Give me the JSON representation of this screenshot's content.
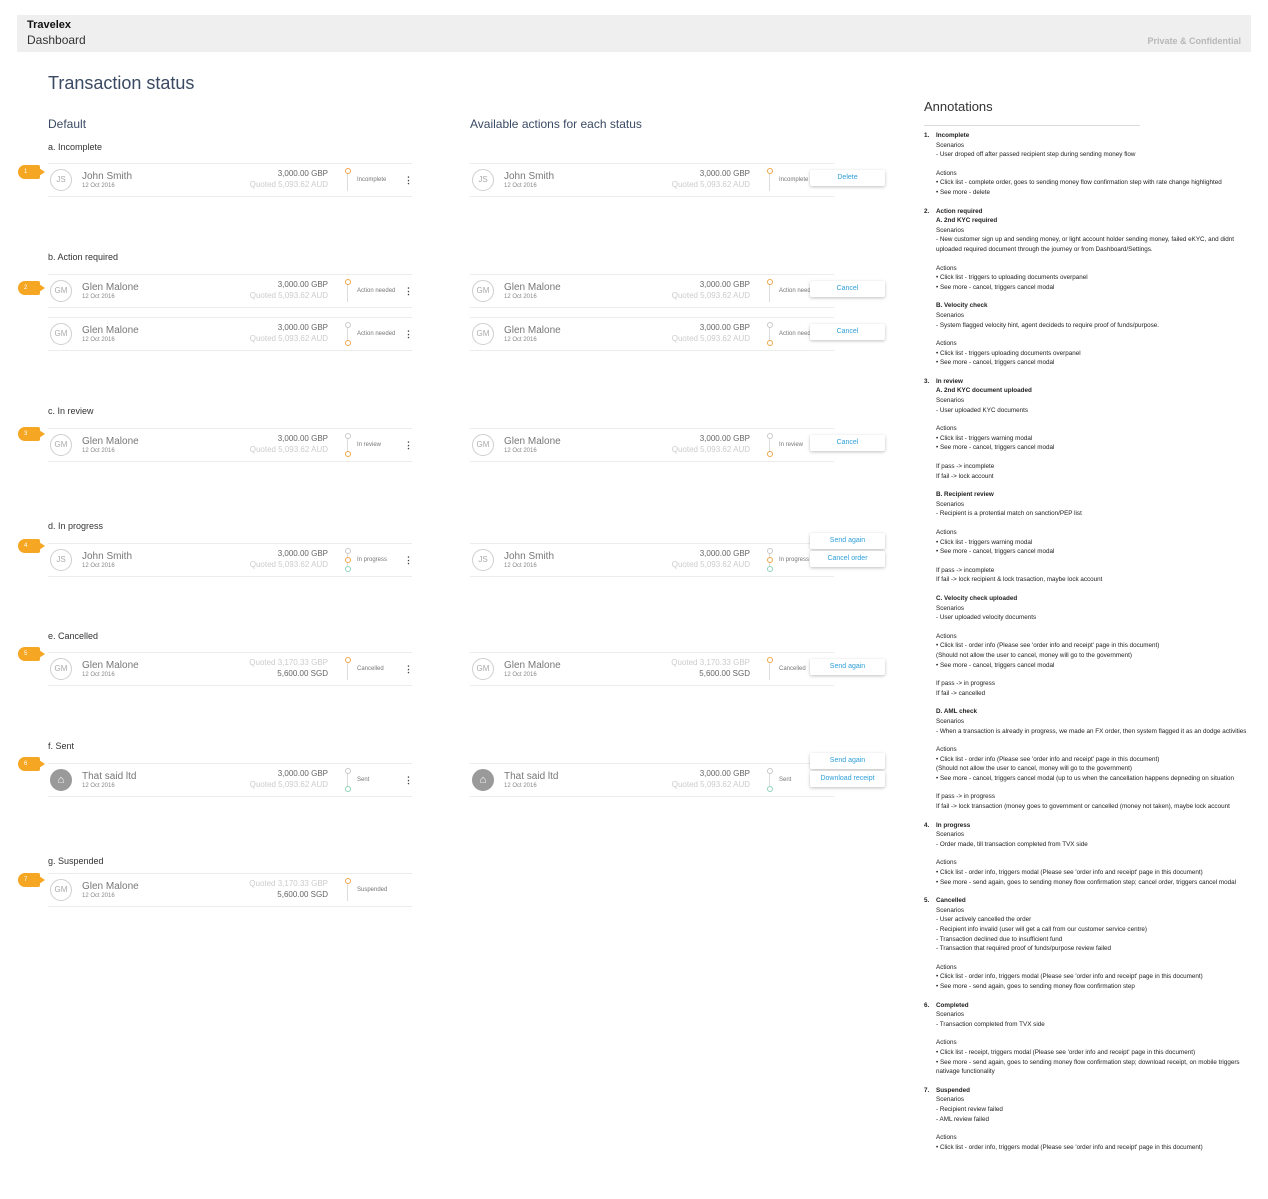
{
  "header": {
    "brand": "Travelex",
    "subtitle": "Dashboard",
    "confidential": "Private & Confidential"
  },
  "page_title": "Transaction status",
  "columns": {
    "default": "Default",
    "actions": "Available actions for each status"
  },
  "sections": [
    {
      "label": "a. Incomplete",
      "badge": "1"
    },
    {
      "label": "b. Action required",
      "badge": "2"
    },
    {
      "label": "c. In review",
      "badge": "3"
    },
    {
      "label": "d. In progress",
      "badge": "4"
    },
    {
      "label": "e. Cancelled",
      "badge": "5"
    },
    {
      "label": "f. Sent",
      "badge": "6"
    },
    {
      "label": "g. Suspended",
      "badge": "7"
    }
  ],
  "rows": [
    {
      "initials": "JS",
      "name": "John Smith",
      "date": "12 Oct 2016",
      "amount": "3,000.00 GBP",
      "quoted": "Quoted 5,093.62 AUD",
      "status": "Incomplete",
      "dots": [
        "orange"
      ],
      "actions": [
        "Delete"
      ]
    },
    {
      "initials": "GM",
      "name": "Glen Malone",
      "date": "12 Oct 2016",
      "amount": "3,000.00 GBP",
      "quoted": "Quoted 5,093.62 AUD",
      "status": "Action needed",
      "dots": [
        "orange"
      ],
      "actions": [
        "Cancel"
      ]
    },
    {
      "initials": "GM",
      "name": "Glen Malone",
      "date": "12 Oct 2016",
      "amount": "3,000.00 GBP",
      "quoted": "Quoted 5,093.62 AUD",
      "status": "Action needed",
      "dots": [
        "grey",
        "orange"
      ],
      "actions": [
        "Cancel"
      ]
    },
    {
      "initials": "GM",
      "name": "Glen Malone",
      "date": "12 Oct 2016",
      "amount": "3,000.00 GBP",
      "quoted": "Quoted 5,093.62 AUD",
      "status": "In review",
      "dots": [
        "grey",
        "orange"
      ],
      "actions": [
        "Cancel"
      ]
    },
    {
      "initials": "JS",
      "name": "John Smith",
      "date": "12 Oct 2016",
      "amount": "3,000.00 GBP",
      "quoted": "Quoted 5,093.62 AUD",
      "status": "In progress",
      "dots": [
        "grey",
        "orange",
        "green"
      ],
      "actions": [
        "Send again",
        "Cancel order"
      ]
    },
    {
      "initials": "GM",
      "name": "Glen Malone",
      "date": "12 Oct 2016",
      "amount": "Quoted 3,170.33 GBP",
      "quoted": "5,600.00 SGD",
      "status": "Cancelled",
      "dots": [
        "orange"
      ],
      "actions": [
        "Send again"
      ]
    },
    {
      "initials": "home",
      "name": "That said ltd",
      "date": "12 Oct 2016",
      "amount": "3,000.00 GBP",
      "quoted": "Quoted 5,093.62 AUD",
      "status": "Sent",
      "dots": [
        "grey",
        "green"
      ],
      "actions": [
        "Send again",
        "Download receipt"
      ]
    },
    {
      "initials": "GM",
      "name": "Glen Malone",
      "date": "12 Oct 2016",
      "amount": "Quoted 3,170.33 GBP",
      "quoted": "5,600.00 SGD",
      "status": "Suspended",
      "dots": [
        "orange"
      ],
      "actions": []
    }
  ],
  "annotations": {
    "title": "Annotations",
    "items": [
      {
        "num": "1.",
        "title": "Incomplete",
        "lines": [
          {
            "t": "Scenarios"
          },
          {
            "t": "- User droped off after passed recipient step during sending money flow"
          },
          {
            "t": "Actions",
            "s": true
          },
          {
            "t": "• Click list - complete order, goes to sending money flow confirmation step with rate change highlighted"
          },
          {
            "t": "• See more - delete"
          }
        ]
      },
      {
        "num": "2.",
        "title": "Action required",
        "lines": [
          {
            "t": "A. 2nd KYC required",
            "b": true
          },
          {
            "t": "Scenarios"
          },
          {
            "t": "- New customer sign up and sending money, or light account holder sending money, failed eKYC, and didnt uploaded required document through the journey or from Dashboard/Settings."
          },
          {
            "t": "Actions",
            "s": true
          },
          {
            "t": "• Click list - triggers to uploading documents overpanel"
          },
          {
            "t": "• See more - cancel, triggers cancel modal"
          },
          {
            "t": "B. Velocity check",
            "sb": true
          },
          {
            "t": "Scenarios"
          },
          {
            "t": "- System flagged velocity hint, agent decideds to require proof of funds/purpose."
          },
          {
            "t": "Actions",
            "s": true
          },
          {
            "t": "• Click list - triggers uploading documents overpanel"
          },
          {
            "t": "• See more - cancel, triggers cancel modal"
          }
        ]
      },
      {
        "num": "3.",
        "title": "In review",
        "lines": [
          {
            "t": "A. 2nd KYC document uploaded",
            "b": true
          },
          {
            "t": "Scenarios"
          },
          {
            "t": "- User uploaded KYC documents"
          },
          {
            "t": "Actions",
            "s": true
          },
          {
            "t": "• Click list - triggers warning modal"
          },
          {
            "t": "• See more - cancel, triggers cancel modal"
          },
          {
            "t": "If pass -> incomplete",
            "s": true
          },
          {
            "t": "If fail -> lock account"
          },
          {
            "t": "B. Recipient review",
            "sb": true
          },
          {
            "t": "Scenarios"
          },
          {
            "t": "- Recipient is a protential match on sanction/PEP list"
          },
          {
            "t": "Actions",
            "s": true
          },
          {
            "t": "• Click list - triggers warning modal"
          },
          {
            "t": "• See more - cancel, triggers cancel modal"
          },
          {
            "t": "If pass -> incomplete",
            "s": true
          },
          {
            "t": "If fail -> lock recipient & lock trasaction, maybe lock account"
          },
          {
            "t": "C. Velocity check uploaded",
            "sb": true
          },
          {
            "t": "Scenarios"
          },
          {
            "t": "- User uploaded velocity documents"
          },
          {
            "t": "Actions",
            "s": true
          },
          {
            "t": "• Click list - order info (Please see 'order info and receipt' page in this document)"
          },
          {
            "t": "(Should not allow the user to cancel, money will go to the government)"
          },
          {
            "t": "• See more - cancel, triggers cancel modal"
          },
          {
            "t": "If pass -> in progress",
            "s": true
          },
          {
            "t": "If fail -> cancelled"
          },
          {
            "t": "D. AML check",
            "sb": true
          },
          {
            "t": "Scenarios"
          },
          {
            "t": "- When a transaction is already in progress, we made an FX order, then system flagged it as an dodge activities"
          },
          {
            "t": "Actions",
            "s": true
          },
          {
            "t": "• Click list - order info (Please see 'order info and receipt' page in this document)"
          },
          {
            "t": "(Should not allow the user to cancel, money will go to the government)"
          },
          {
            "t": "• See more - cancel, triggers cancel modal (up to us when the cancellation happens depneding on situation"
          },
          {
            "t": "If pass -> in progress",
            "s": true
          },
          {
            "t": "If fail -> lock transaction (money goes to government or cancelled (money not taken), maybe lock account"
          }
        ]
      },
      {
        "num": "4.",
        "title": "In progress",
        "lines": [
          {
            "t": "Scenarios"
          },
          {
            "t": "- Order made, till transaction completed from TVX side"
          },
          {
            "t": "Actions",
            "s": true
          },
          {
            "t": "• Click list - order info, triggers modal (Please see 'order info and receipt' page in this document)"
          },
          {
            "t": "• See more - send again, goes to sending money flow confirmation step; cancel order, triggers cancel modal"
          }
        ]
      },
      {
        "num": "5.",
        "title": "Cancelled",
        "lines": [
          {
            "t": "Scenarios"
          },
          {
            "t": "- User actively cancelled the order"
          },
          {
            "t": "- Recipient info invalid (user will get a call from our customer service centre)"
          },
          {
            "t": "- Transaction declined due to insufficient fund"
          },
          {
            "t": "- Transaction that required proof of funds/purpose review failed"
          },
          {
            "t": "Actions",
            "s": true
          },
          {
            "t": "• Click list - order info, triggers modal (Please see 'order info and receipt' page in this document)"
          },
          {
            "t": "• See more - send again, goes to sending money flow confirmation step"
          }
        ]
      },
      {
        "num": "6.",
        "title": "Completed",
        "lines": [
          {
            "t": "Scenarios"
          },
          {
            "t": "- Transaction completed from TVX side"
          },
          {
            "t": "Actions",
            "s": true
          },
          {
            "t": "• Click list - receipt, triggers modal (Please see 'order info and receipt' page in this document)"
          },
          {
            "t": "• See more - send again, goes to sending money flow confirmation step; download receipt, on mobile triggers nativage functionality"
          }
        ]
      },
      {
        "num": "7.",
        "title": "Suspended",
        "lines": [
          {
            "t": "Scenarios"
          },
          {
            "t": "- Recipient review failed"
          },
          {
            "t": "- AML review failed"
          },
          {
            "t": "Actions",
            "s": true
          },
          {
            "t": "• Click list - order info, triggers modal (Please see 'order info and receipt' page in this document)"
          }
        ]
      }
    ]
  }
}
